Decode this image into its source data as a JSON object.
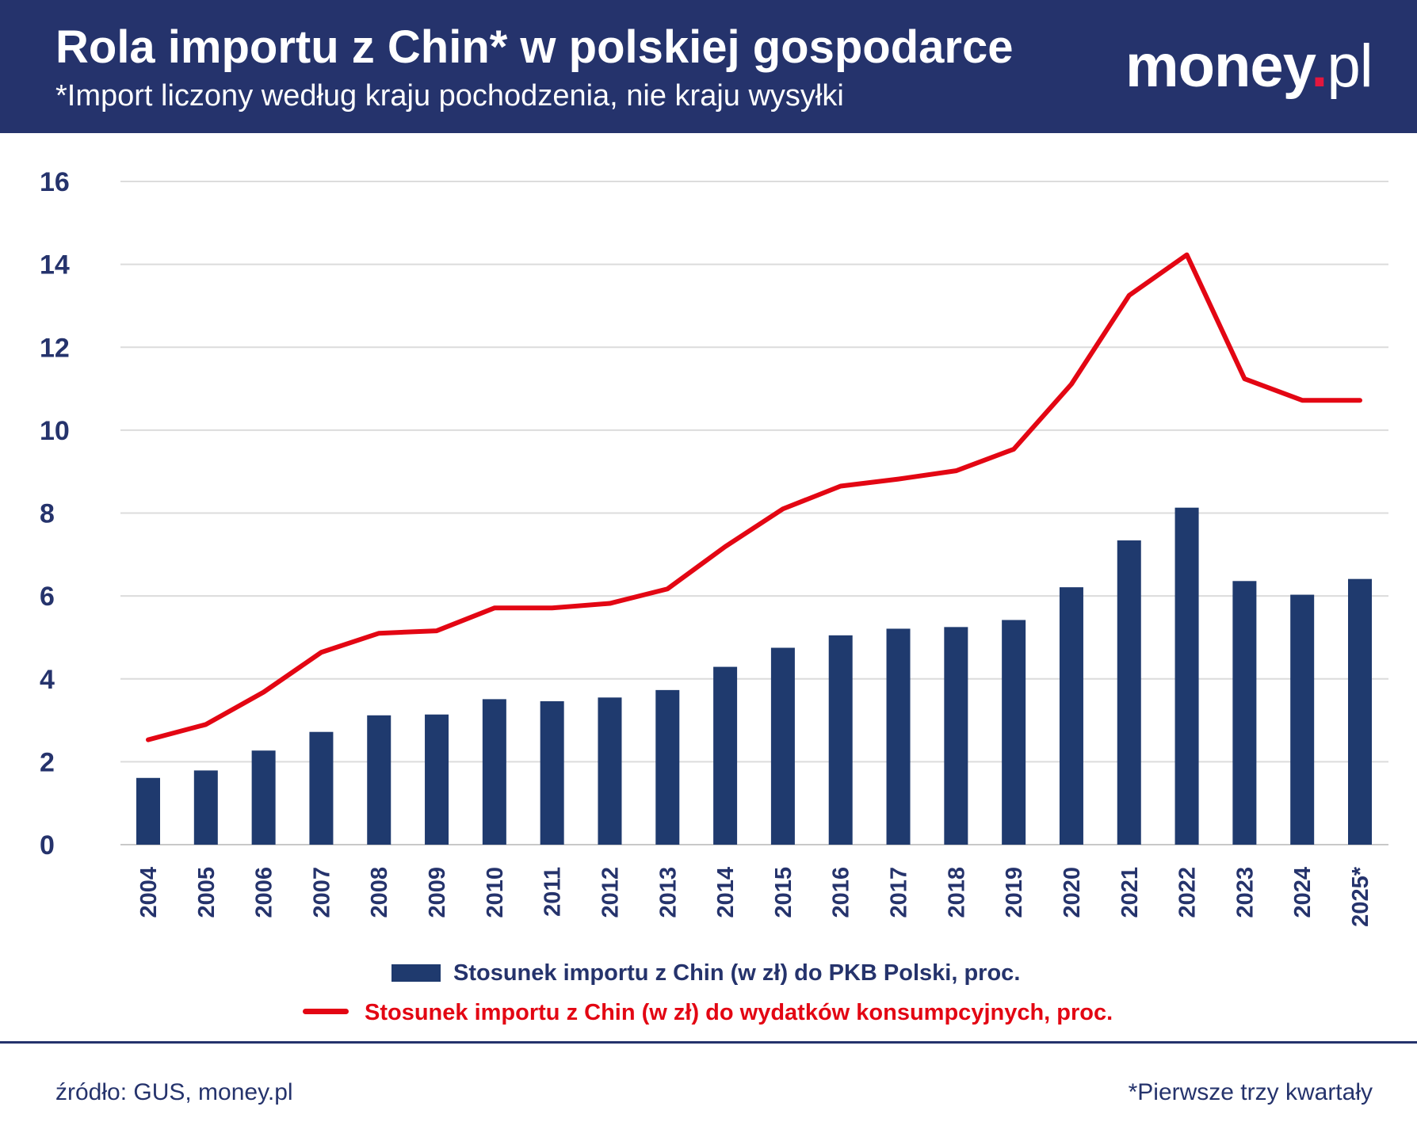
{
  "header": {
    "title": "Rola importu z Chin* w polskiej gospodarce",
    "subtitle": "*Import liczony według kraju pochodzenia, nie kraju wysyłki",
    "logo": "money.pl"
  },
  "footer": {
    "source": "źródło: GUS, money.pl",
    "note": "*Pierwsze trzy kwartały"
  },
  "chart_data": {
    "type": "bar+line",
    "categories": [
      "2004",
      "2005",
      "2006",
      "2007",
      "2008",
      "2009",
      "2010",
      "2011",
      "2012",
      "2013",
      "2014",
      "2015",
      "2016",
      "2017",
      "2018",
      "2019",
      "2020",
      "2021",
      "2022",
      "2023",
      "2024",
      "2025*"
    ],
    "ylim": [
      0,
      16
    ],
    "yticks": [
      "0",
      "2",
      "4",
      "6",
      "8",
      "10",
      "12",
      "14",
      "16"
    ],
    "grid": true,
    "legend_position": "bottom",
    "series": [
      {
        "name": "Stosunek importu z Chin (w zł) do PKB Polski, proc.",
        "type": "bar",
        "color": "#1f3a6e",
        "values": [
          1.61,
          1.79,
          2.27,
          2.72,
          3.12,
          3.14,
          3.51,
          3.46,
          3.55,
          3.73,
          4.29,
          4.75,
          5.05,
          5.21,
          5.25,
          5.42,
          6.21,
          7.34,
          8.13,
          6.36,
          6.03,
          6.41
        ]
      },
      {
        "name": "Stosunek importu z Chin (w zł) do wydatków konsumpcyjnych, proc.",
        "type": "line",
        "color": "#e30613",
        "values": [
          2.53,
          2.9,
          3.68,
          4.64,
          5.1,
          5.16,
          5.71,
          5.71,
          5.82,
          6.17,
          7.19,
          8.1,
          8.65,
          8.82,
          9.02,
          9.54,
          11.11,
          13.25,
          14.23,
          11.24,
          10.72,
          10.72
        ]
      }
    ]
  }
}
